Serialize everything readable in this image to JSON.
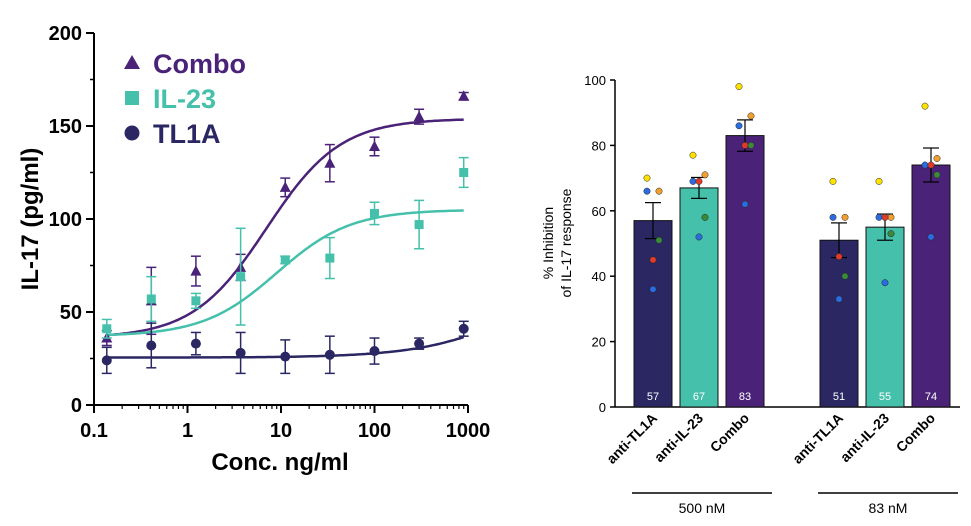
{
  "colors": {
    "combo": "#4a2378",
    "il23": "#45c0ab",
    "tl1a": "#2a2763",
    "axis": "#000000"
  },
  "chart_data": [
    {
      "type": "scatter",
      "xlabel": "Conc. ng/ml",
      "ylabel": "IL-17 (pg/ml)",
      "xscale": "log",
      "xlim": [
        0.1,
        1000
      ],
      "ylim": [
        0,
        200
      ],
      "xticks": [
        0.1,
        1,
        10,
        100,
        1000
      ],
      "xtick_labels": [
        "0.1",
        "1",
        "10",
        "100",
        "1000"
      ],
      "yticks": [
        0,
        50,
        100,
        150,
        200
      ],
      "ytick_labels": [
        "0",
        "50",
        "100",
        "150",
        "200"
      ],
      "legend_placement": "top-left",
      "legend": [
        {
          "label": "Combo",
          "marker": "triangle",
          "color_key": "combo"
        },
        {
          "label": "IL-23",
          "marker": "square",
          "color_key": "il23"
        },
        {
          "label": "TL1A",
          "marker": "circle",
          "color_key": "tl1a"
        }
      ],
      "x": [
        0.137,
        0.41,
        1.23,
        3.7,
        11.1,
        33.3,
        100,
        300,
        900
      ],
      "series": [
        {
          "name": "Combo",
          "marker": "triangle",
          "color_key": "combo",
          "values": [
            36,
            56,
            72,
            74,
            117,
            130,
            139,
            155,
            166
          ],
          "errors": [
            4,
            18,
            8,
            7,
            5,
            10,
            5,
            4,
            2
          ],
          "fit": {
            "bottom": 36,
            "top": 154,
            "ec50": 7,
            "hill": 1.1
          }
        },
        {
          "name": "IL-23",
          "marker": "square",
          "color_key": "il23",
          "values": [
            41,
            57,
            56,
            69,
            78,
            79,
            103,
            97,
            125
          ],
          "errors": [
            5,
            12,
            4,
            26,
            2,
            11,
            6,
            13,
            8
          ],
          "fit": {
            "bottom": 37,
            "top": 105,
            "ec50": 9,
            "hill": 1.1
          }
        },
        {
          "name": "TL1A",
          "marker": "circle",
          "color_key": "tl1a",
          "values": [
            24,
            32,
            33,
            28,
            26,
            27,
            29,
            33,
            41
          ],
          "errors": [
            7,
            12,
            6,
            11,
            9,
            10,
            7,
            3,
            4
          ],
          "fit": {
            "bottom": 25.5,
            "top": 80,
            "ec50": 5000,
            "hill": 0.8
          }
        }
      ]
    },
    {
      "type": "bar",
      "ylabel_line1": "% Inhibition",
      "ylabel_line2": "of IL-17 response",
      "ylim": [
        0,
        100
      ],
      "yticks": [
        0,
        20,
        40,
        60,
        80,
        100
      ],
      "ytick_labels": [
        "0",
        "20",
        "40",
        "60",
        "80",
        "100"
      ],
      "groups": [
        {
          "label": "500 nM",
          "bars": [
            {
              "label": "anti-TL1A",
              "value": 57,
              "value_label": "57",
              "error": 5.5,
              "color_key": "tl1a",
              "points": [
                70,
                66,
                66,
                45,
                51,
                36
              ]
            },
            {
              "label": "anti-IL-23",
              "value": 67,
              "value_label": "67",
              "error": 3.2,
              "color_key": "il23",
              "points": [
                77,
                71,
                69,
                69,
                58,
                52
              ]
            },
            {
              "label": "Combo",
              "value": 83,
              "value_label": "83",
              "error": 4.8,
              "color_key": "combo",
              "points": [
                98,
                89,
                86,
                80,
                80,
                62
              ]
            }
          ]
        },
        {
          "label": "83 nM",
          "bars": [
            {
              "label": "anti-TL1A",
              "value": 51,
              "value_label": "51",
              "error": 5.3,
              "color_key": "tl1a",
              "points": [
                69,
                58,
                58,
                46,
                40,
                33
              ]
            },
            {
              "label": "anti-IL-23",
              "value": 55,
              "value_label": "55",
              "error": 4.0,
              "color_key": "il23",
              "points": [
                69,
                58,
                58,
                58,
                53,
                38
              ]
            },
            {
              "label": "Combo",
              "value": 74,
              "value_label": "74",
              "error": 5.2,
              "color_key": "combo",
              "points": [
                92,
                76,
                74,
                74,
                71,
                52
              ]
            }
          ]
        }
      ],
      "point_colors": [
        "#ffe100",
        "#f0a030",
        "#2b6de0",
        "#e03a2a",
        "#3a8a3a",
        "#2b6de0"
      ]
    }
  ]
}
